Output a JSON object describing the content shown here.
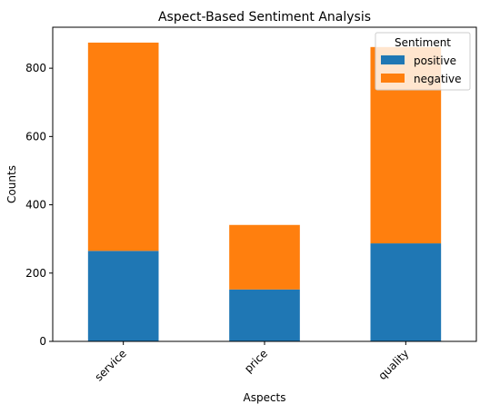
{
  "chart_data": {
    "type": "bar",
    "stacked": true,
    "title": "Aspect-Based Sentiment Analysis",
    "xlabel": "Aspects",
    "ylabel": "Counts",
    "categories": [
      "service",
      "price",
      "quality"
    ],
    "series": [
      {
        "name": "positive",
        "color": "#1f77b4",
        "values": [
          265,
          152,
          287
        ]
      },
      {
        "name": "negative",
        "color": "#ff7f0e",
        "values": [
          610,
          189,
          575
        ]
      }
    ],
    "ylim": [
      0,
      920
    ],
    "yticks": [
      0,
      200,
      400,
      600,
      800
    ],
    "legend": {
      "title": "Sentiment",
      "placement": "top-right"
    },
    "grid": false
  }
}
